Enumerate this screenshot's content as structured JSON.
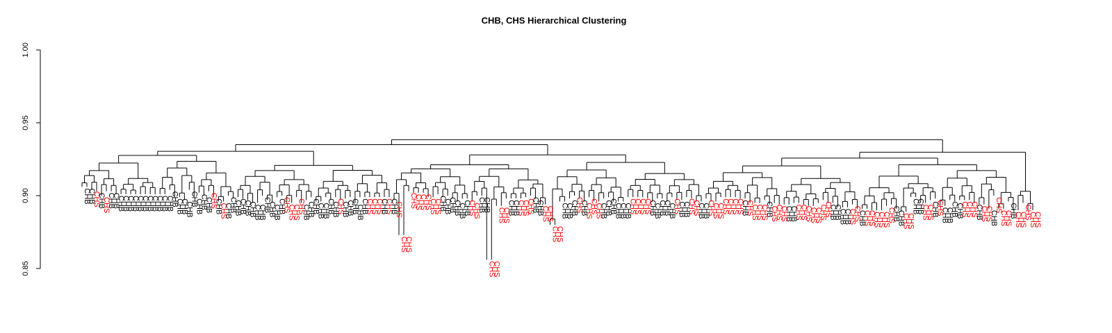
{
  "chart_data": {
    "type": "dendrogram",
    "title": "CHB, CHS Hierarchical Clustering",
    "xlabel": "",
    "ylabel": "",
    "ylim": [
      0.85,
      1.0
    ],
    "y_ticks": [
      0.85,
      0.9,
      0.95,
      1.0
    ],
    "y_tick_labels": [
      "0.85",
      "0.90",
      "0.95",
      "1.00"
    ],
    "grid": false,
    "colors": {
      "CHB": "#000000",
      "CHS": "#ff0000"
    },
    "root_height": 0.928,
    "leaves": [
      {
        "label": "CHB",
        "h": 0.906
      },
      {
        "label": "CHB",
        "h": 0.906
      },
      {
        "label": "CHS",
        "h": 0.904
      },
      {
        "label": "CHB",
        "h": 0.903
      },
      {
        "label": "CHS",
        "h": 0.9
      },
      {
        "label": "CHB",
        "h": 0.903
      },
      {
        "label": "CHB",
        "h": 0.903
      },
      {
        "label": "CHB",
        "h": 0.901
      },
      {
        "label": "CHB",
        "h": 0.901
      },
      {
        "label": "CHB",
        "h": 0.901
      },
      {
        "label": "CHB",
        "h": 0.901
      },
      {
        "label": "CHB",
        "h": 0.901
      },
      {
        "label": "CHB",
        "h": 0.901
      },
      {
        "label": "CHB",
        "h": 0.901
      },
      {
        "label": "CHB",
        "h": 0.901
      },
      {
        "label": "CHB",
        "h": 0.901
      },
      {
        "label": "CHB",
        "h": 0.901
      },
      {
        "label": "CHB",
        "h": 0.901
      },
      {
        "label": "CHB",
        "h": 0.904
      },
      {
        "label": "CHB",
        "h": 0.899
      },
      {
        "label": "CHB",
        "h": 0.899
      },
      {
        "label": "CHB",
        "h": 0.897
      },
      {
        "label": "CHB",
        "h": 0.904
      },
      {
        "label": "CHB",
        "h": 0.899
      },
      {
        "label": "CHB",
        "h": 0.902
      },
      {
        "label": "CHB",
        "h": 0.9
      },
      {
        "label": "CHS",
        "h": 0.903
      },
      {
        "label": "CHB",
        "h": 0.899
      },
      {
        "label": "CHS",
        "h": 0.896
      },
      {
        "label": "CHB",
        "h": 0.896
      },
      {
        "label": "CHB",
        "h": 0.9
      },
      {
        "label": "CHB",
        "h": 0.898
      },
      {
        "label": "CHB",
        "h": 0.899
      },
      {
        "label": "CHB",
        "h": 0.898
      },
      {
        "label": "CHB",
        "h": 0.897
      },
      {
        "label": "CHB",
        "h": 0.895
      },
      {
        "label": "CHB",
        "h": 0.895
      },
      {
        "label": "CHB",
        "h": 0.9
      },
      {
        "label": "CHB",
        "h": 0.897
      },
      {
        "label": "CHB",
        "h": 0.895
      },
      {
        "label": "CHB",
        "h": 0.899
      },
      {
        "label": "CHS",
        "h": 0.9
      },
      {
        "label": "CHS",
        "h": 0.895
      },
      {
        "label": "CHS",
        "h": 0.895
      },
      {
        "label": "CHS",
        "h": 0.899
      },
      {
        "label": "CHB",
        "h": 0.895
      },
      {
        "label": "CHB",
        "h": 0.897
      },
      {
        "label": "CHB",
        "h": 0.899
      },
      {
        "label": "CHB",
        "h": 0.896
      },
      {
        "label": "CHB",
        "h": 0.896
      },
      {
        "label": "CHB",
        "h": 0.899
      },
      {
        "label": "CHB",
        "h": 0.897
      },
      {
        "label": "CHS",
        "h": 0.899
      },
      {
        "label": "CHB",
        "h": 0.897
      },
      {
        "label": "CHB",
        "h": 0.898
      },
      {
        "label": "CHB",
        "h": 0.899
      },
      {
        "label": "CHB",
        "h": 0.895
      },
      {
        "label": "CHB",
        "h": 0.899
      },
      {
        "label": "CHS",
        "h": 0.899
      },
      {
        "label": "CHS",
        "h": 0.899
      },
      {
        "label": "CHS",
        "h": 0.899
      },
      {
        "label": "CHB",
        "h": 0.899
      },
      {
        "label": "CHS",
        "h": 0.899
      },
      {
        "label": "CHB",
        "h": 0.899
      },
      {
        "label": "CHS",
        "h": 0.897
      },
      {
        "label": "CHS",
        "h": 0.873
      },
      {
        "label": "CHS",
        "h": 0.873
      },
      {
        "label": "CHS",
        "h": 0.903
      },
      {
        "label": "CHS",
        "h": 0.902
      },
      {
        "label": "CHS",
        "h": 0.902
      },
      {
        "label": "CHS",
        "h": 0.902
      },
      {
        "label": "CHS",
        "h": 0.899
      },
      {
        "label": "CHS",
        "h": 0.899
      },
      {
        "label": "CHB",
        "h": 0.901
      },
      {
        "label": "CHB",
        "h": 0.899
      },
      {
        "label": "CHB",
        "h": 0.9
      },
      {
        "label": "CHB",
        "h": 0.898
      },
      {
        "label": "CHB",
        "h": 0.896
      },
      {
        "label": "CHB",
        "h": 0.898
      },
      {
        "label": "CHS",
        "h": 0.898
      },
      {
        "label": "CHS",
        "h": 0.896
      },
      {
        "label": "CHB",
        "h": 0.9
      },
      {
        "label": "CHB",
        "h": 0.9
      },
      {
        "label": "CHS",
        "h": 0.856
      },
      {
        "label": "CHS",
        "h": 0.856
      },
      {
        "label": "CHS",
        "h": 0.893
      },
      {
        "label": "CHS",
        "h": 0.893
      },
      {
        "label": "CHB",
        "h": 0.898
      },
      {
        "label": "CHB",
        "h": 0.898
      },
      {
        "label": "CHS",
        "h": 0.898
      },
      {
        "label": "CHS",
        "h": 0.898
      },
      {
        "label": "CHS",
        "h": 0.899
      },
      {
        "label": "CHB",
        "h": 0.9
      },
      {
        "label": "CHB",
        "h": 0.898
      },
      {
        "label": "CHS",
        "h": 0.894
      },
      {
        "label": "CHS",
        "h": 0.894
      },
      {
        "label": "CHS",
        "h": 0.88
      },
      {
        "label": "CHS",
        "h": 0.88
      },
      {
        "label": "CHB",
        "h": 0.896
      },
      {
        "label": "CHB",
        "h": 0.896
      },
      {
        "label": "CHB",
        "h": 0.898
      },
      {
        "label": "CHS",
        "h": 0.9
      },
      {
        "label": "CHB",
        "h": 0.898
      },
      {
        "label": "CHS",
        "h": 0.896
      },
      {
        "label": "CHS",
        "h": 0.899
      },
      {
        "label": "CHS",
        "h": 0.896
      },
      {
        "label": "CHB",
        "h": 0.896
      },
      {
        "label": "CHB",
        "h": 0.898
      },
      {
        "label": "CHB",
        "h": 0.899
      },
      {
        "label": "CHB",
        "h": 0.896
      },
      {
        "label": "CHB",
        "h": 0.896
      },
      {
        "label": "CHB",
        "h": 0.896
      },
      {
        "label": "CHS",
        "h": 0.899
      },
      {
        "label": "CHS",
        "h": 0.899
      },
      {
        "label": "CHS",
        "h": 0.899
      },
      {
        "label": "CHS",
        "h": 0.899
      },
      {
        "label": "CHB",
        "h": 0.898
      },
      {
        "label": "CHB",
        "h": 0.896
      },
      {
        "label": "CHB",
        "h": 0.898
      },
      {
        "label": "CHB",
        "h": 0.898
      },
      {
        "label": "CHB",
        "h": 0.896
      },
      {
        "label": "CHS",
        "h": 0.899
      },
      {
        "label": "CHB",
        "h": 0.897
      },
      {
        "label": "CHB",
        "h": 0.897
      },
      {
        "label": "CHS",
        "h": 0.899
      },
      {
        "label": "CHS",
        "h": 0.898
      },
      {
        "label": "CHB",
        "h": 0.896
      },
      {
        "label": "CHB",
        "h": 0.896
      },
      {
        "label": "CHS",
        "h": 0.898
      },
      {
        "label": "CHS",
        "h": 0.896
      },
      {
        "label": "CHS",
        "h": 0.896
      },
      {
        "label": "CHS",
        "h": 0.899
      },
      {
        "label": "CHS",
        "h": 0.899
      },
      {
        "label": "CHS",
        "h": 0.899
      },
      {
        "label": "CHS",
        "h": 0.899
      },
      {
        "label": "CHB",
        "h": 0.898
      },
      {
        "label": "CHS",
        "h": 0.898
      },
      {
        "label": "CHS",
        "h": 0.895
      },
      {
        "label": "CHS",
        "h": 0.895
      },
      {
        "label": "CHS",
        "h": 0.895
      },
      {
        "label": "CHB",
        "h": 0.897
      },
      {
        "label": "CHS",
        "h": 0.894
      },
      {
        "label": "CHS",
        "h": 0.895
      },
      {
        "label": "CHS",
        "h": 0.894
      },
      {
        "label": "CHB",
        "h": 0.894
      },
      {
        "label": "CHB",
        "h": 0.894
      },
      {
        "label": "CHS",
        "h": 0.895
      },
      {
        "label": "CHS",
        "h": 0.895
      },
      {
        "label": "CHS",
        "h": 0.894
      },
      {
        "label": "CHS",
        "h": 0.893
      },
      {
        "label": "CHS",
        "h": 0.893
      },
      {
        "label": "CHS",
        "h": 0.895
      },
      {
        "label": "CHS",
        "h": 0.897
      },
      {
        "label": "CHB",
        "h": 0.895
      },
      {
        "label": "CHB",
        "h": 0.895
      },
      {
        "label": "CHB",
        "h": 0.892
      },
      {
        "label": "CHB",
        "h": 0.892
      },
      {
        "label": "CHS",
        "h": 0.892
      },
      {
        "label": "CHS",
        "h": 0.894
      },
      {
        "label": "CHB",
        "h": 0.891
      },
      {
        "label": "CHS",
        "h": 0.891
      },
      {
        "label": "CHS",
        "h": 0.891
      },
      {
        "label": "CHS",
        "h": 0.89
      },
      {
        "label": "CHS",
        "h": 0.89
      },
      {
        "label": "CHS",
        "h": 0.89
      },
      {
        "label": "CHS",
        "h": 0.893
      },
      {
        "label": "CHB",
        "h": 0.894
      },
      {
        "label": "CHB",
        "h": 0.891
      },
      {
        "label": "CHS",
        "h": 0.889
      },
      {
        "label": "CHS",
        "h": 0.889
      },
      {
        "label": "CHB",
        "h": 0.899
      },
      {
        "label": "CHB",
        "h": 0.899
      },
      {
        "label": "CHS",
        "h": 0.895
      },
      {
        "label": "CHS",
        "h": 0.895
      },
      {
        "label": "CHB",
        "h": 0.897
      },
      {
        "label": "CHS",
        "h": 0.898
      },
      {
        "label": "CHB",
        "h": 0.893
      },
      {
        "label": "CHB",
        "h": 0.893
      },
      {
        "label": "CHB",
        "h": 0.897
      },
      {
        "label": "CHB",
        "h": 0.896
      },
      {
        "label": "CHS",
        "h": 0.897
      },
      {
        "label": "CHS",
        "h": 0.897
      },
      {
        "label": "CHS",
        "h": 0.897
      },
      {
        "label": "CHB",
        "h": 0.895
      },
      {
        "label": "CHS",
        "h": 0.894
      },
      {
        "label": "CHS",
        "h": 0.894
      },
      {
        "label": "CHB",
        "h": 0.891
      },
      {
        "label": "CHS",
        "h": 0.9
      },
      {
        "label": "CHS",
        "h": 0.891
      },
      {
        "label": "CHS",
        "h": 0.891
      },
      {
        "label": "CHB",
        "h": 0.896
      },
      {
        "label": "CHS",
        "h": 0.89
      },
      {
        "label": "CHS",
        "h": 0.89
      },
      {
        "label": "CHS",
        "h": 0.895
      },
      {
        "label": "CHS",
        "h": 0.89
      },
      {
        "label": "CHS",
        "h": 0.89
      }
    ]
  }
}
